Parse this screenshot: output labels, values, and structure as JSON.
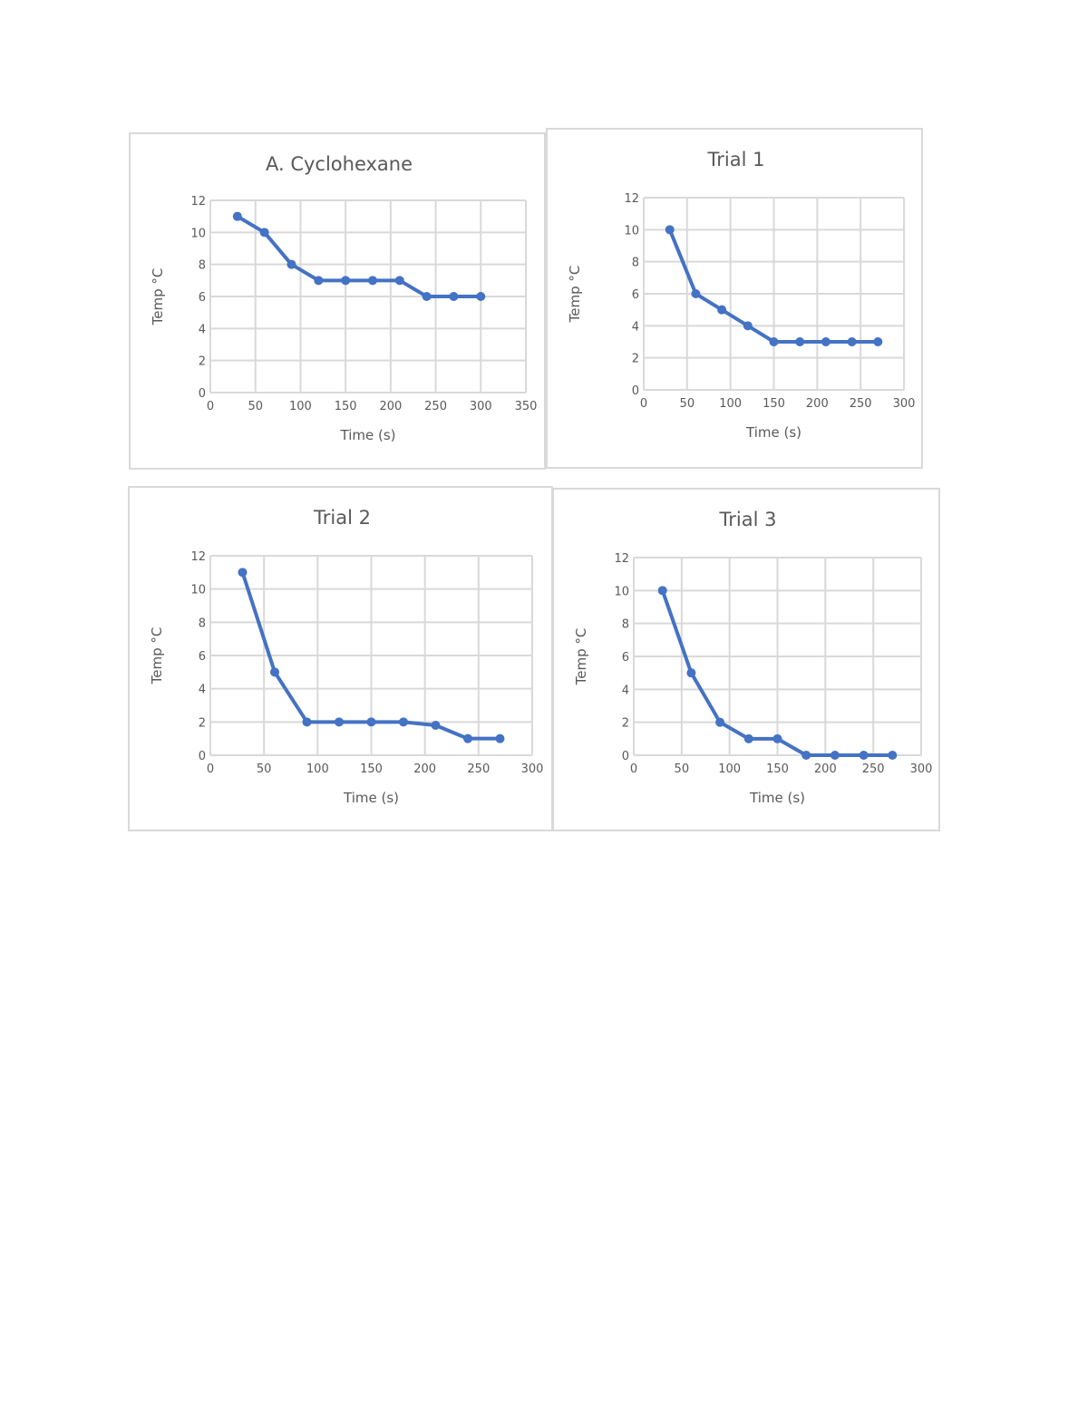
{
  "colors": {
    "series": "#4472c4",
    "grid": "#d9d9d9",
    "text": "#595959",
    "border": "#d9d9d9"
  },
  "chart_data": [
    {
      "type": "line",
      "title": "A. Cyclohexane",
      "xlabel": "Time (s)",
      "ylabel": "Temp °C",
      "xlim": [
        0,
        350
      ],
      "ylim": [
        0,
        12
      ],
      "xticks": [
        0,
        50,
        100,
        150,
        200,
        250,
        300,
        350
      ],
      "yticks": [
        0,
        2,
        4,
        6,
        8,
        10,
        12
      ],
      "grid": true,
      "x": [
        30,
        60,
        90,
        120,
        150,
        180,
        210,
        240,
        270,
        300
      ],
      "series": [
        {
          "values": [
            11,
            10,
            8,
            7,
            7,
            7,
            7,
            6,
            6,
            6
          ]
        }
      ]
    },
    {
      "type": "line",
      "title": "Trial 1",
      "xlabel": "Time (s)",
      "ylabel": "Temp °C",
      "xlim": [
        0,
        300
      ],
      "ylim": [
        0,
        12
      ],
      "xticks": [
        0,
        50,
        100,
        150,
        200,
        250,
        300
      ],
      "yticks": [
        0,
        2,
        4,
        6,
        8,
        10,
        12
      ],
      "grid": true,
      "x": [
        30,
        60,
        90,
        120,
        150,
        180,
        210,
        240,
        270
      ],
      "series": [
        {
          "values": [
            10,
            6,
            5,
            4,
            3,
            3,
            3,
            3,
            3
          ]
        }
      ]
    },
    {
      "type": "line",
      "title": "Trial 2",
      "xlabel": "Time (s)",
      "ylabel": "Temp °C",
      "xlim": [
        0,
        300
      ],
      "ylim": [
        0,
        12
      ],
      "xticks": [
        0,
        50,
        100,
        150,
        200,
        250,
        300
      ],
      "yticks": [
        0,
        2,
        4,
        6,
        8,
        10,
        12
      ],
      "grid": true,
      "x": [
        30,
        60,
        90,
        120,
        150,
        180,
        210,
        240,
        270
      ],
      "series": [
        {
          "values": [
            11,
            5,
            2,
            2,
            2,
            2,
            1.8,
            1,
            1
          ]
        }
      ]
    },
    {
      "type": "line",
      "title": "Trial 3",
      "xlabel": "Time (s)",
      "ylabel": "Temp °C",
      "xlim": [
        0,
        300
      ],
      "ylim": [
        0,
        12
      ],
      "xticks": [
        0,
        50,
        100,
        150,
        200,
        250,
        300
      ],
      "yticks": [
        0,
        2,
        4,
        6,
        8,
        10,
        12
      ],
      "grid": true,
      "x": [
        30,
        60,
        90,
        120,
        150,
        180,
        210,
        240,
        270
      ],
      "series": [
        {
          "values": [
            10,
            5,
            2,
            1,
            1,
            0,
            0,
            0,
            0
          ]
        }
      ]
    }
  ]
}
